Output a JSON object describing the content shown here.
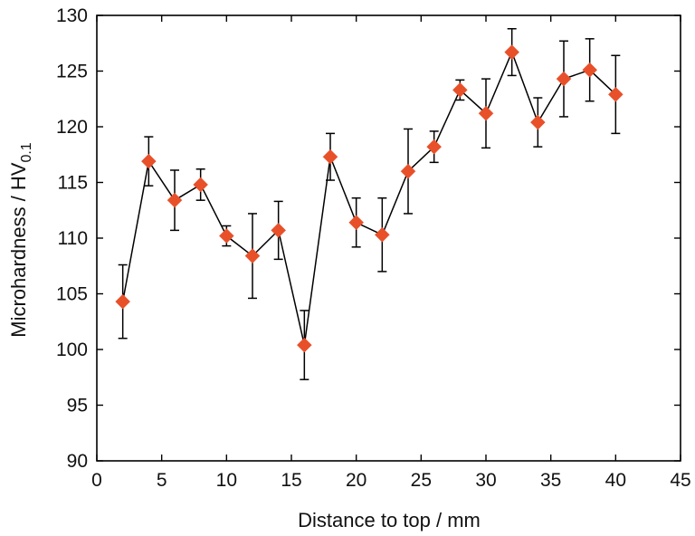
{
  "chart_data": {
    "type": "scatter",
    "xlabel": "Distance to top / mm",
    "ylabel": "Microhardness / HV",
    "ylabel_subscript": "0.1",
    "xlim": [
      0,
      45
    ],
    "ylim": [
      90,
      130
    ],
    "xticks": [
      0,
      5,
      10,
      15,
      20,
      25,
      30,
      35,
      40,
      45
    ],
    "yticks": [
      90,
      95,
      100,
      105,
      110,
      115,
      120,
      125,
      130
    ],
    "grid": false,
    "marker_color": "#e8502a",
    "line_color": "#000000",
    "series": [
      {
        "x": [
          2,
          4,
          6,
          8,
          10,
          12,
          14,
          16,
          18,
          20,
          22,
          24,
          26,
          28,
          30,
          32,
          34,
          36,
          38,
          40
        ],
        "y": [
          104.3,
          116.9,
          113.4,
          114.8,
          110.2,
          108.4,
          110.7,
          100.4,
          117.3,
          111.4,
          110.3,
          116.0,
          118.2,
          123.3,
          121.2,
          126.7,
          120.4,
          124.3,
          125.1,
          122.9
        ],
        "err": [
          3.3,
          2.2,
          2.7,
          1.4,
          0.9,
          3.8,
          2.6,
          3.1,
          2.1,
          2.2,
          3.3,
          3.8,
          1.4,
          0.9,
          3.1,
          2.1,
          2.2,
          3.4,
          2.8,
          3.5
        ]
      }
    ]
  }
}
